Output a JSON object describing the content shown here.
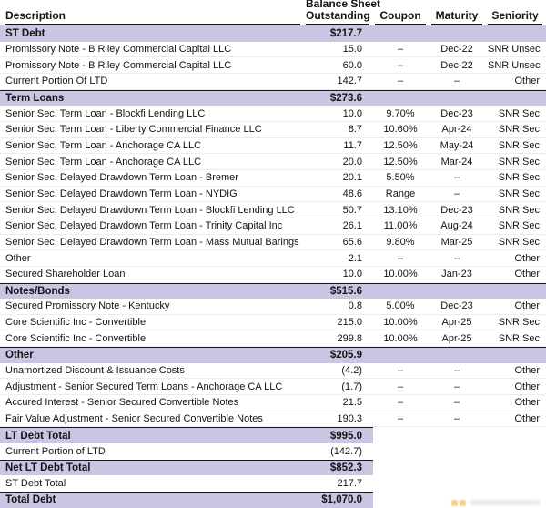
{
  "table": {
    "header": {
      "description": "Description",
      "outstanding_line1": "Balance Sheet",
      "outstanding_line2": "Outstanding",
      "coupon": "Coupon",
      "maturity": "Maturity",
      "seniority": "Seniority"
    },
    "rows": [
      {
        "type": "section",
        "description": "ST Debt",
        "outstanding": "$217.7",
        "coupon": "",
        "maturity": "",
        "seniority": ""
      },
      {
        "type": "data",
        "description": "Promissory Note - B Riley Commercial Capital LLC",
        "outstanding": "15.0",
        "coupon": "–",
        "maturity": "Dec-22",
        "seniority": "SNR Unsec"
      },
      {
        "type": "data",
        "description": "Promissory Note - B Riley Commercial Capital LLC",
        "outstanding": "60.0",
        "coupon": "–",
        "maturity": "Dec-22",
        "seniority": "SNR Unsec"
      },
      {
        "type": "data",
        "description": "Current Portion Of LTD",
        "outstanding": "142.7",
        "coupon": "–",
        "maturity": "–",
        "seniority": "Other"
      },
      {
        "type": "section",
        "description": "Term Loans",
        "outstanding": "$273.6",
        "coupon": "",
        "maturity": "",
        "seniority": ""
      },
      {
        "type": "data",
        "description": "Senior Sec. Term Loan - Blockfi Lending LLC",
        "outstanding": "10.0",
        "coupon": "9.70%",
        "maturity": "Dec-23",
        "seniority": "SNR Sec"
      },
      {
        "type": "data",
        "description": "Senior Sec. Term Loan - Liberty Commercial Finance LLC",
        "outstanding": "8.7",
        "coupon": "10.60%",
        "maturity": "Apr-24",
        "seniority": "SNR Sec"
      },
      {
        "type": "data",
        "description": "Senior Sec. Term Loan - Anchorage CA LLC",
        "outstanding": "11.7",
        "coupon": "12.50%",
        "maturity": "May-24",
        "seniority": "SNR Sec"
      },
      {
        "type": "data",
        "description": "Senior Sec. Term Loan - Anchorage CA LLC",
        "outstanding": "20.0",
        "coupon": "12.50%",
        "maturity": "Mar-24",
        "seniority": "SNR Sec"
      },
      {
        "type": "data",
        "description": "Senior Sec. Delayed Drawdown Term Loan - Bremer",
        "outstanding": "20.1",
        "coupon": "5.50%",
        "maturity": "–",
        "seniority": "SNR Sec"
      },
      {
        "type": "data",
        "description": "Senior Sec. Delayed Drawdown Term Loan - NYDIG",
        "outstanding": "48.6",
        "coupon": "Range",
        "maturity": "–",
        "seniority": "SNR Sec"
      },
      {
        "type": "data",
        "description": "Senior Sec. Delayed Drawdown Term Loan - Blockfi Lending LLC",
        "outstanding": "50.7",
        "coupon": "13.10%",
        "maturity": "Dec-23",
        "seniority": "SNR Sec"
      },
      {
        "type": "data",
        "description": "Senior Sec. Delayed Drawdown Term Loan - Trinity Capital Inc",
        "outstanding": "26.1",
        "coupon": "11.00%",
        "maturity": "Aug-24",
        "seniority": "SNR Sec"
      },
      {
        "type": "data",
        "description": "Senior Sec. Delayed Drawdown Term Loan - Mass Mutual Barings",
        "outstanding": "65.6",
        "coupon": "9.80%",
        "maturity": "Mar-25",
        "seniority": "SNR Sec"
      },
      {
        "type": "data",
        "description": "Other",
        "outstanding": "2.1",
        "coupon": "–",
        "maturity": "–",
        "seniority": "Other"
      },
      {
        "type": "data",
        "description": "Secured Shareholder Loan",
        "outstanding": "10.0",
        "coupon": "10.00%",
        "maturity": "Jan-23",
        "seniority": "Other"
      },
      {
        "type": "section",
        "description": "Notes/Bonds",
        "outstanding": "$515.6",
        "coupon": "",
        "maturity": "",
        "seniority": ""
      },
      {
        "type": "data",
        "description": "Secured Promissory Note - Kentucky",
        "outstanding": "0.8",
        "coupon": "5.00%",
        "maturity": "Dec-23",
        "seniority": "Other"
      },
      {
        "type": "data",
        "description": "Core Scientific Inc - Convertible",
        "outstanding": "215.0",
        "coupon": "10.00%",
        "maturity": "Apr-25",
        "seniority": "SNR Sec"
      },
      {
        "type": "data",
        "description": "Core Scientific Inc - Convertible",
        "outstanding": "299.8",
        "coupon": "10.00%",
        "maturity": "Apr-25",
        "seniority": "SNR Sec"
      },
      {
        "type": "section",
        "description": "Other",
        "outstanding": "$205.9",
        "coupon": "",
        "maturity": "",
        "seniority": ""
      },
      {
        "type": "data",
        "description": "Unamortized Discount & Issuance Costs",
        "outstanding": "(4.2)",
        "coupon": "–",
        "maturity": "–",
        "seniority": "Other"
      },
      {
        "type": "data",
        "description": "Adjustment - Senior Secured Term Loans - Anchorage CA LLC",
        "outstanding": "(1.7)",
        "coupon": "–",
        "maturity": "–",
        "seniority": "Other"
      },
      {
        "type": "data",
        "description": "Accured Interest - Senior Secured Convertible Notes",
        "outstanding": "21.5",
        "coupon": "–",
        "maturity": "–",
        "seniority": "Other"
      },
      {
        "type": "data",
        "description": "Fair Value Adjustment - Senior Secured Convertible Notes",
        "outstanding": "190.3",
        "coupon": "–",
        "maturity": "–",
        "seniority": "Other"
      },
      {
        "type": "summary",
        "description": "LT Debt Total",
        "outstanding": "$995.0"
      },
      {
        "type": "summary_plain",
        "description": "Current Portion of LTD",
        "outstanding": "(142.7)"
      },
      {
        "type": "summary",
        "description": "Net LT Debt Total",
        "outstanding": "$852.3"
      },
      {
        "type": "summary_plain",
        "description": "ST Debt Total",
        "outstanding": "217.7"
      },
      {
        "type": "summary",
        "description": "Total Debt",
        "outstanding": "$1,070.0"
      }
    ]
  },
  "colors": {
    "section_band": "#c9c5e3",
    "header_rule": "#161616",
    "row_separator": "#ededed",
    "text": "#141414",
    "watermark_orange": "#f0a830"
  },
  "watermark": {
    "name": "partial-logo-cut-off-at-bottom-edge"
  }
}
